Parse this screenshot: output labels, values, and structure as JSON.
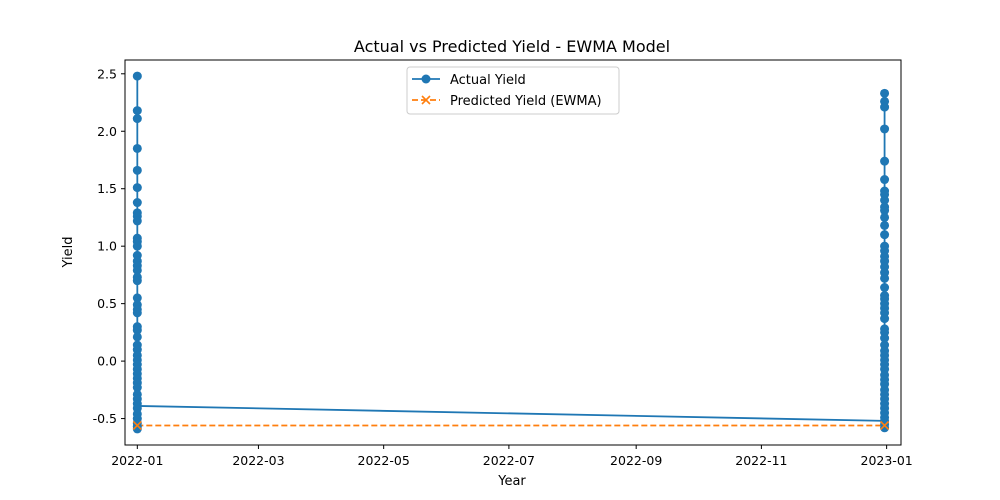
{
  "chart_data": {
    "type": "line",
    "title": "Actual vs Predicted Yield - EWMA Model",
    "xlabel": "Year",
    "ylabel": "Yield",
    "xlim": [
      "2021-12-26",
      "2023-01-08"
    ],
    "ylim": [
      -0.73,
      2.62
    ],
    "x_ticks": [
      "2022-01",
      "2022-03",
      "2022-05",
      "2022-07",
      "2022-09",
      "2022-11",
      "2023-01"
    ],
    "y_ticks": [
      "-0.5",
      "0.0",
      "0.5",
      "1.0",
      "1.5",
      "2.0",
      "2.5"
    ],
    "grid": false,
    "legend": "upper-center",
    "series": [
      {
        "name": "Actual Yield",
        "color": "#1f77b4",
        "marker": "circle",
        "style": "solid",
        "points": [
          {
            "x": "2022-01-01",
            "ys": [
              2.48,
              2.18,
              2.11,
              1.85,
              1.66,
              1.51,
              1.38,
              1.29,
              1.26,
              1.22,
              1.07,
              1.04,
              1.0,
              0.92,
              0.87,
              0.83,
              0.79,
              0.73,
              0.7,
              0.55,
              0.49,
              0.45,
              0.42,
              0.3,
              0.27,
              0.21,
              0.14,
              0.1,
              0.05,
              0.01,
              -0.03,
              -0.07,
              -0.11,
              -0.15,
              -0.19,
              -0.23,
              -0.29,
              -0.33,
              -0.37,
              -0.41,
              -0.46,
              -0.5,
              -0.54,
              -0.57,
              -0.59
            ]
          },
          {
            "x": "2022-12-31",
            "ys": [
              2.33,
              2.26,
              2.21,
              2.02,
              1.74,
              1.58,
              1.48,
              1.45,
              1.4,
              1.34,
              1.31,
              1.25,
              1.18,
              1.1,
              1.0,
              0.96,
              0.91,
              0.87,
              0.82,
              0.77,
              0.72,
              0.64,
              0.57,
              0.54,
              0.5,
              0.46,
              0.42,
              0.37,
              0.28,
              0.25,
              0.2,
              0.14,
              0.09,
              0.05,
              0.01,
              -0.03,
              -0.07,
              -0.12,
              -0.16,
              -0.2,
              -0.25,
              -0.29,
              -0.33,
              -0.37,
              -0.41,
              -0.45,
              -0.49,
              -0.52,
              -0.55,
              -0.58
            ]
          }
        ],
        "connector": [
          {
            "x": "2022-01-01",
            "y": -0.39
          },
          {
            "x": "2022-12-31",
            "y": -0.52
          }
        ]
      },
      {
        "name": "Predicted Yield (EWMA)",
        "color": "#ff7f0e",
        "marker": "x",
        "style": "dashed",
        "points": [
          {
            "x": "2022-01-01",
            "y": -0.56
          },
          {
            "x": "2022-12-31",
            "y": -0.56
          }
        ]
      }
    ]
  }
}
